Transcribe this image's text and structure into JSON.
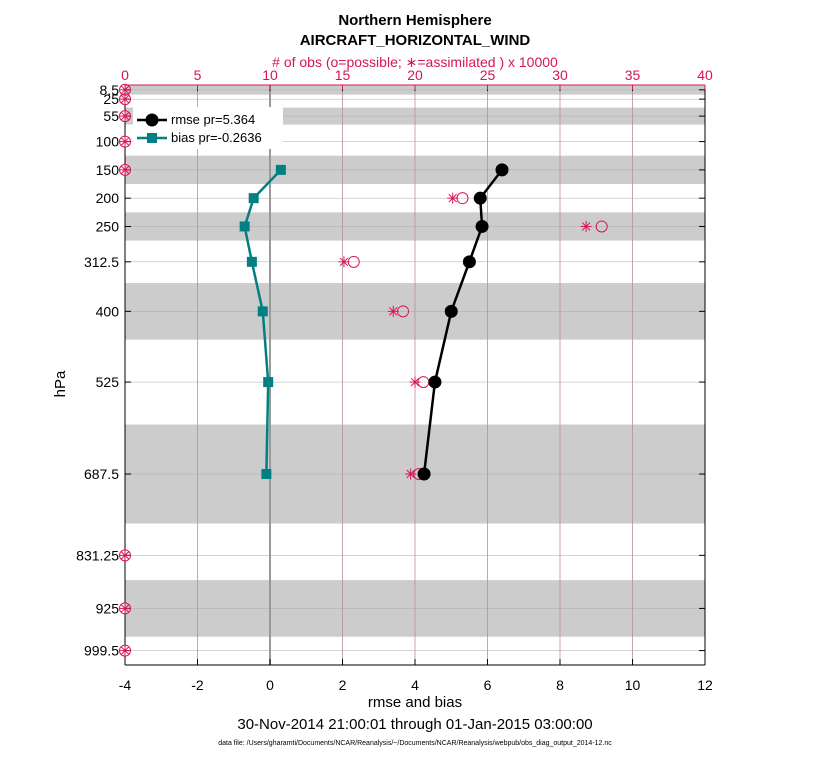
{
  "chart_data": {
    "type": "line",
    "title": "Northern Hemisphere",
    "subtitle": "AIRCRAFT_HORIZONTAL_WIND",
    "xlabel": "rmse and bias",
    "ylabel": "hPa",
    "top_xlabel": "# of obs (o=possible; ∗=assimilated ) x 10000",
    "date_range": "30-Nov-2014 21:00:01 through 01-Jan-2015 03:00:00",
    "footnote": "data file: /Users/gharamti/Documents/NCAR/Reanalysis/~/Documents/NCAR/Reanalysis/webpub/obs_diag_output_2014-12.nc",
    "xlim": [
      -4,
      12
    ],
    "xticks": [
      -4,
      -2,
      0,
      2,
      4,
      6,
      8,
      10,
      12
    ],
    "xtick_labels": [
      "-4",
      "-2",
      "0",
      "2",
      "4",
      "6",
      "8",
      "10",
      "12"
    ],
    "top_xlim": [
      0,
      40
    ],
    "top_xticks": [
      0,
      5,
      10,
      15,
      20,
      25,
      30,
      35,
      40
    ],
    "top_xtick_labels": [
      "0",
      "5",
      "10",
      "15",
      "20",
      "25",
      "30",
      "35",
      "40"
    ],
    "yticks": [
      8.5,
      25,
      55,
      100,
      150,
      200,
      250,
      312.5,
      400,
      525,
      687.5,
      831.25,
      925,
      999.5
    ],
    "ytick_labels": [
      "8.5",
      "25",
      "55",
      "100",
      "150",
      "200",
      "250",
      "312.5",
      "400",
      "525",
      "687.5",
      "831.25",
      "925",
      "999.5"
    ],
    "gray_bands": [
      [
        0,
        17
      ],
      [
        40,
        70
      ],
      [
        125,
        175
      ],
      [
        225,
        275
      ],
      [
        350,
        450
      ],
      [
        600,
        775
      ],
      [
        875,
        975
      ]
    ],
    "series": [
      {
        "name": "rmse",
        "legend_label": "rmse pr=5.364",
        "color": "#000000",
        "marker": "circle",
        "points": [
          [
            6.4,
            150
          ],
          [
            5.8,
            200
          ],
          [
            5.85,
            250
          ],
          [
            5.5,
            312.5
          ],
          [
            5.0,
            400
          ],
          [
            4.55,
            525
          ],
          [
            4.25,
            687.5
          ]
        ]
      },
      {
        "name": "bias",
        "legend_label": "bias pr=-0.2636",
        "color": "#008080",
        "marker": "square",
        "points": [
          [
            0.3,
            150
          ],
          [
            -0.45,
            200
          ],
          [
            -0.7,
            250
          ],
          [
            -0.5,
            312.5
          ],
          [
            -0.2,
            400
          ],
          [
            -0.05,
            525
          ],
          [
            -0.1,
            687.5
          ]
        ]
      }
    ],
    "obs_possible": [
      {
        "level": 8.5,
        "count": 0
      },
      {
        "level": 25,
        "count": 0
      },
      {
        "level": 55,
        "count": 0
      },
      {
        "level": 100,
        "count": 0
      },
      {
        "level": 150,
        "count": 0
      },
      {
        "level": 200,
        "count": 23
      },
      {
        "level": 250,
        "count": 32.6
      },
      {
        "level": 312.5,
        "count": 15.5
      },
      {
        "level": 400,
        "count": 18.9
      },
      {
        "level": 525,
        "count": 20.3
      },
      {
        "level": 687.5,
        "count": 20.0
      },
      {
        "level": 831.25,
        "count": 0
      },
      {
        "level": 925,
        "count": 0
      },
      {
        "level": 999.5,
        "count": 0
      }
    ],
    "obs_assimilated": [
      {
        "level": 8.5,
        "count": 0
      },
      {
        "level": 25,
        "count": 0
      },
      {
        "level": 55,
        "count": 0
      },
      {
        "level": 100,
        "count": 0
      },
      {
        "level": 150,
        "count": 0
      },
      {
        "level": 200,
        "count": 22.6
      },
      {
        "level": 250,
        "count": 31.8
      },
      {
        "level": 312.5,
        "count": 15.1
      },
      {
        "level": 400,
        "count": 18.5
      },
      {
        "level": 525,
        "count": 20.0
      },
      {
        "level": 687.5,
        "count": 19.7
      },
      {
        "level": 831.25,
        "count": 0
      },
      {
        "level": 925,
        "count": 0
      },
      {
        "level": 999.5,
        "count": 0
      }
    ],
    "colors": {
      "pink": "#d6155a",
      "teal": "#008080",
      "band": "#cccccc",
      "grid": "#c08aa0"
    }
  }
}
